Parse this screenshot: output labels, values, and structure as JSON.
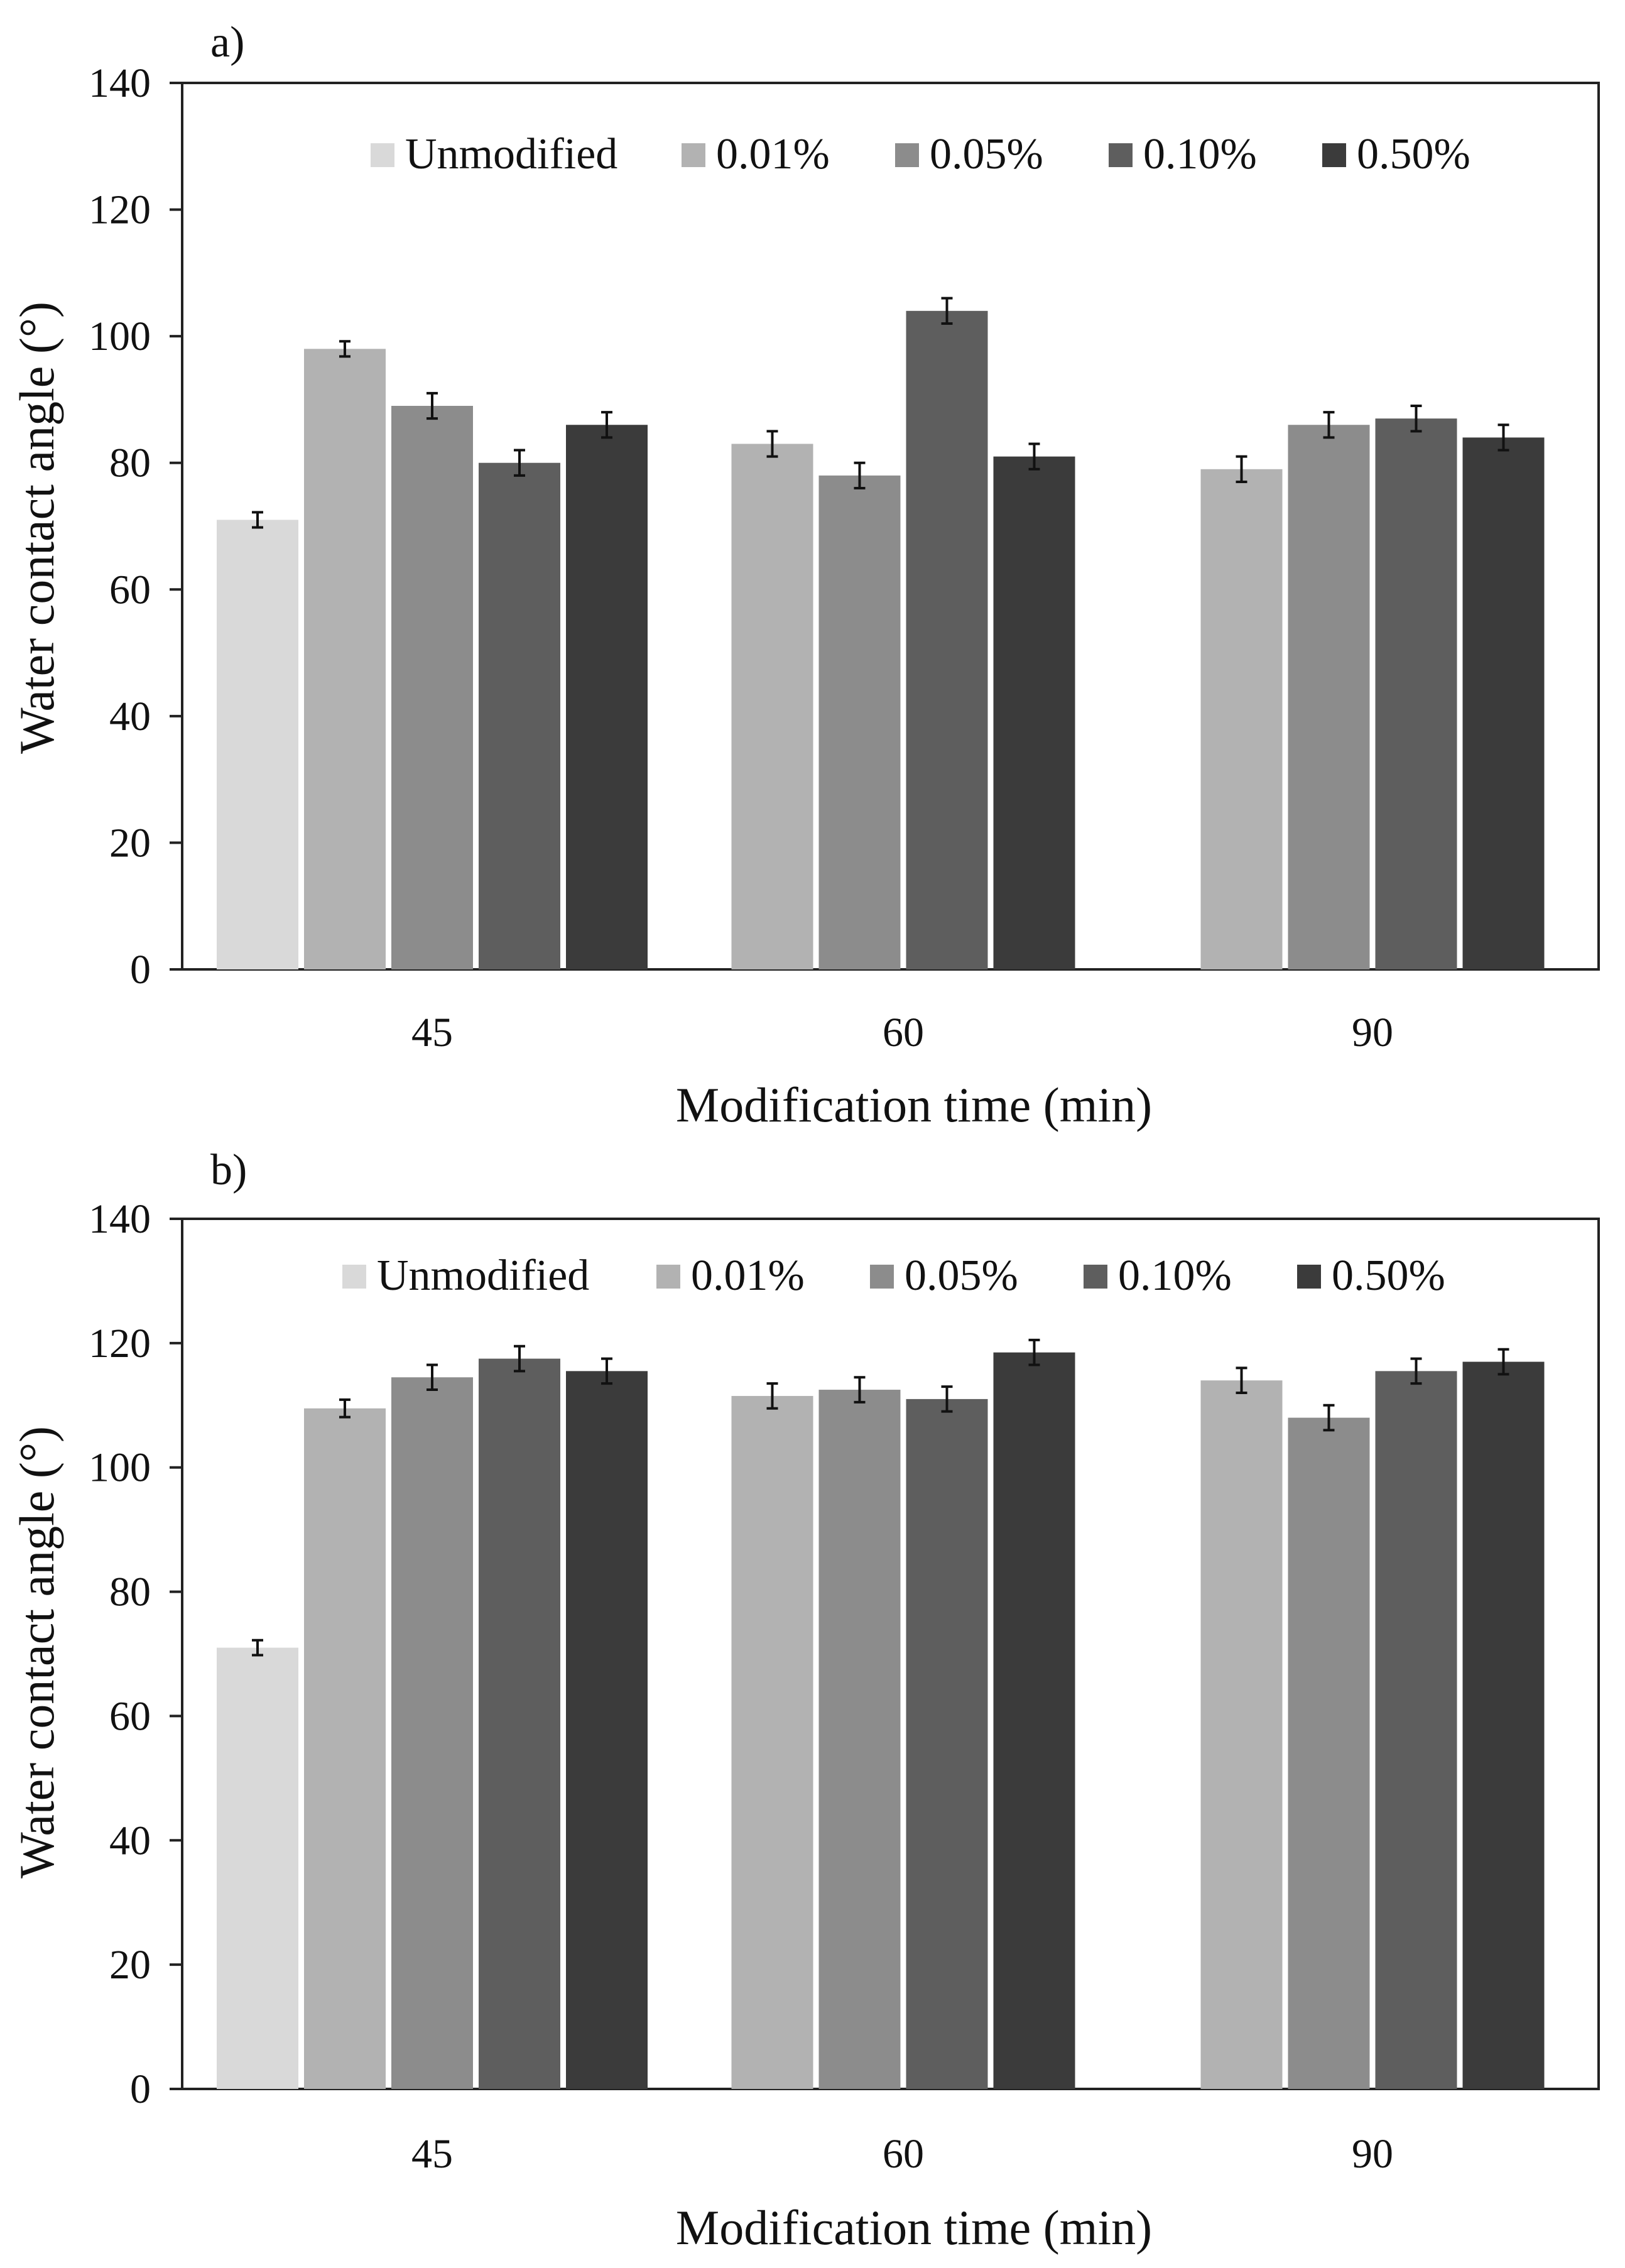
{
  "colors": {
    "Unmodified": "#d9d9d9",
    "0.01%": "#b2b2b2",
    "0.05%": "#8c8c8c",
    "0.10%": "#5e5e5e",
    "0.50%": "#3b3b3b"
  },
  "chart_data": [
    {
      "type": "bar",
      "panel_label": "a)",
      "xlabel": "Modification time (min)",
      "ylabel": "Water contact angle (°)",
      "ylim": [
        0,
        140
      ],
      "yticks": [
        0,
        20,
        40,
        60,
        80,
        100,
        120,
        140
      ],
      "grid": false,
      "legend_position": "top",
      "legend": [
        "Unmodified",
        "0.01%",
        "0.05%",
        "0.10%",
        "0.50%"
      ],
      "categories": [
        "45",
        "60",
        "90"
      ],
      "groups": [
        {
          "category": "45",
          "bars": [
            {
              "series": "Unmodified",
              "value": 71,
              "error": 1.2
            },
            {
              "series": "0.01%",
              "value": 98,
              "error": 1.2
            },
            {
              "series": "0.05%",
              "value": 89,
              "error": 2
            },
            {
              "series": "0.10%",
              "value": 80,
              "error": 2
            },
            {
              "series": "0.50%",
              "value": 86,
              "error": 2
            }
          ]
        },
        {
          "category": "60",
          "bars": [
            {
              "series": "0.01%",
              "value": 83,
              "error": 2
            },
            {
              "series": "0.05%",
              "value": 78,
              "error": 2
            },
            {
              "series": "0.10%",
              "value": 104,
              "error": 2
            },
            {
              "series": "0.50%",
              "value": 81,
              "error": 2
            }
          ]
        },
        {
          "category": "90",
          "bars": [
            {
              "series": "0.01%",
              "value": 79,
              "error": 2
            },
            {
              "series": "0.05%",
              "value": 86,
              "error": 2
            },
            {
              "series": "0.10%",
              "value": 87,
              "error": 2
            },
            {
              "series": "0.50%",
              "value": 84,
              "error": 2
            }
          ]
        }
      ]
    },
    {
      "type": "bar",
      "panel_label": "b)",
      "xlabel": "Modification time (min)",
      "ylabel": "Water contact angle (°)",
      "ylim": [
        0,
        140
      ],
      "yticks": [
        0,
        20,
        40,
        60,
        80,
        100,
        120,
        140
      ],
      "grid": false,
      "legend_position": "top",
      "legend": [
        "Unmodified",
        "0.01%",
        "0.05%",
        "0.10%",
        "0.50%"
      ],
      "categories": [
        "45",
        "60",
        "90"
      ],
      "groups": [
        {
          "category": "45",
          "bars": [
            {
              "series": "Unmodified",
              "value": 71,
              "error": 1.2
            },
            {
              "series": "0.01%",
              "value": 109.5,
              "error": 1.4
            },
            {
              "series": "0.05%",
              "value": 114.5,
              "error": 2
            },
            {
              "series": "0.10%",
              "value": 117.5,
              "error": 2
            },
            {
              "series": "0.50%",
              "value": 115.5,
              "error": 2
            }
          ]
        },
        {
          "category": "60",
          "bars": [
            {
              "series": "0.01%",
              "value": 111.5,
              "error": 2
            },
            {
              "series": "0.05%",
              "value": 112.5,
              "error": 2
            },
            {
              "series": "0.10%",
              "value": 111,
              "error": 2
            },
            {
              "series": "0.50%",
              "value": 118.5,
              "error": 2
            }
          ]
        },
        {
          "category": "90",
          "bars": [
            {
              "series": "0.01%",
              "value": 114,
              "error": 2
            },
            {
              "series": "0.05%",
              "value": 108,
              "error": 2
            },
            {
              "series": "0.10%",
              "value": 115.5,
              "error": 2
            },
            {
              "series": "0.50%",
              "value": 117,
              "error": 2
            }
          ]
        }
      ]
    }
  ]
}
